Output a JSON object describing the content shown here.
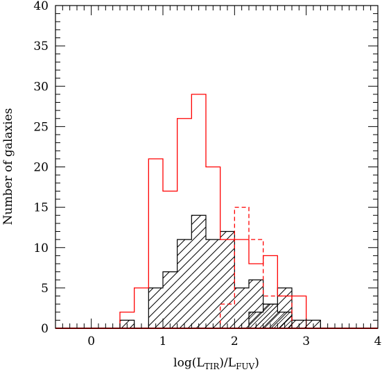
{
  "chart_data": {
    "type": "histogram",
    "xlabel": "log(L",
    "xlabel_sub1": "TIR",
    "xlabel_mid": ")/L",
    "xlabel_sub2": "FUV",
    "xlabel_end": ")",
    "ylabel": "Number of galaxies",
    "xlim": [
      -0.5,
      4
    ],
    "ylim": [
      0,
      40
    ],
    "x_ticks": [
      0,
      1,
      2,
      3,
      4
    ],
    "y_ticks": [
      0,
      5,
      10,
      15,
      20,
      25,
      30,
      35,
      40
    ],
    "grid": false,
    "bin_edges": [
      0.4,
      0.6,
      0.8,
      1.0,
      1.2,
      1.4,
      1.6,
      1.8,
      2.0,
      2.2,
      2.4,
      2.6,
      2.8,
      3.0,
      3.2,
      3.4
    ],
    "series": [
      {
        "style": "red-solid",
        "color": "#ff0000",
        "values": [
          2,
          5,
          21,
          17,
          26,
          29,
          20,
          11,
          11,
          8,
          9,
          4,
          4,
          0,
          0
        ]
      },
      {
        "style": "red-dashed",
        "color": "#ff0000",
        "values": [
          0,
          0,
          0,
          0,
          0,
          0,
          0,
          3,
          15,
          11,
          4,
          4,
          0,
          0,
          0
        ]
      },
      {
        "style": "black-hatched",
        "color": "#000000",
        "values": [
          1,
          0,
          5,
          7,
          11,
          14,
          11,
          12,
          5,
          6,
          3,
          5,
          1,
          1,
          0
        ]
      },
      {
        "style": "black-hatched-fine",
        "color": "#000000",
        "values": [
          0,
          0,
          0,
          0,
          0,
          0,
          0,
          0,
          0,
          2,
          3,
          2,
          0,
          0,
          0
        ]
      }
    ]
  }
}
